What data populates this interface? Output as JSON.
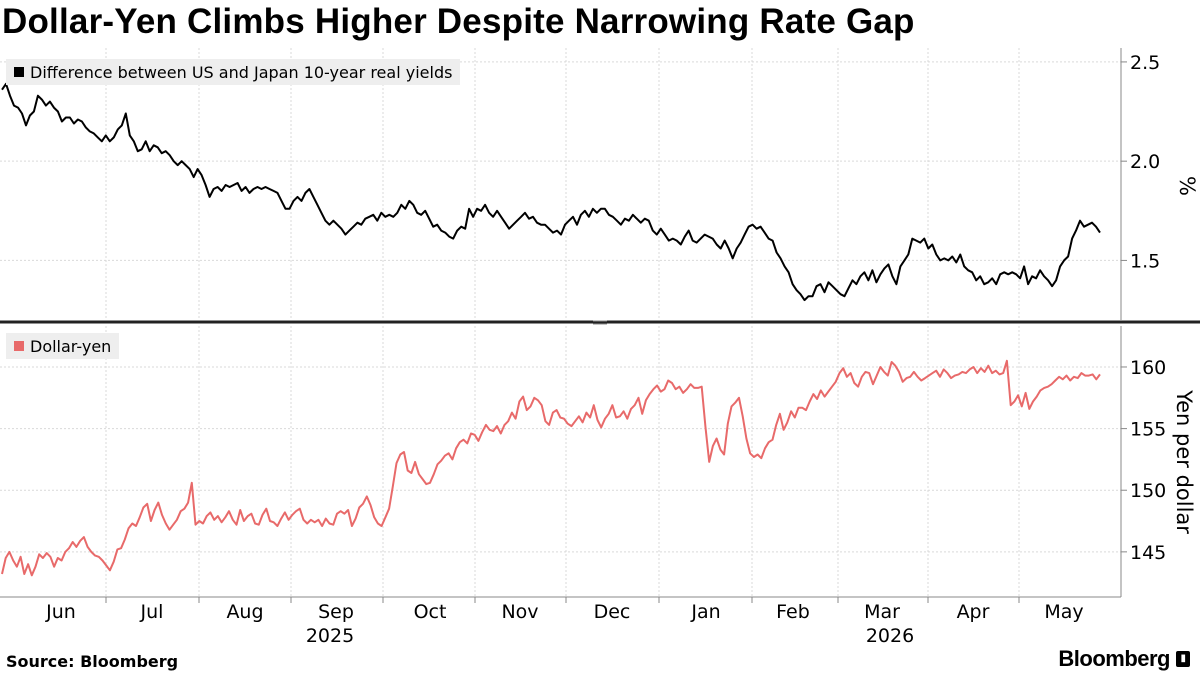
{
  "title": "Dollar-Yen Climbs Higher Despite Narrowing Rate Gap",
  "source": "Source: Bloomberg",
  "brand": "Bloomberg",
  "chart_data": [
    {
      "type": "line",
      "legend": "Difference between US and Japan 10-year real yields",
      "ylabel": "%",
      "yticks": [
        "2.5",
        "2.0",
        "1.5"
      ],
      "ylim": [
        1.22,
        2.55
      ],
      "color": "#000000",
      "grid": true,
      "series": [
        {
          "name": "Difference between US and Japan 10-year real yields",
          "values": [
            2.36,
            2.39,
            2.33,
            2.28,
            2.27,
            2.24,
            2.18,
            2.23,
            2.25,
            2.33,
            2.31,
            2.28,
            2.3,
            2.27,
            2.25,
            2.2,
            2.22,
            2.22,
            2.19,
            2.21,
            2.2,
            2.17,
            2.15,
            2.14,
            2.12,
            2.1,
            2.13,
            2.1,
            2.12,
            2.16,
            2.18,
            2.24,
            2.13,
            2.1,
            2.05,
            2.06,
            2.1,
            2.05,
            2.08,
            2.07,
            2.04,
            2.05,
            2.03,
            2.0,
            1.98,
            2.0,
            1.98,
            1.96,
            1.92,
            1.96,
            1.93,
            1.88,
            1.82,
            1.86,
            1.87,
            1.85,
            1.88,
            1.87,
            1.88,
            1.89,
            1.85,
            1.87,
            1.84,
            1.86,
            1.87,
            1.86,
            1.87,
            1.86,
            1.85,
            1.84,
            1.8,
            1.76,
            1.76,
            1.8,
            1.82,
            1.8,
            1.84,
            1.86,
            1.82,
            1.78,
            1.74,
            1.7,
            1.68,
            1.7,
            1.68,
            1.66,
            1.63,
            1.65,
            1.67,
            1.69,
            1.68,
            1.71,
            1.72,
            1.73,
            1.7,
            1.74,
            1.72,
            1.73,
            1.72,
            1.74,
            1.78,
            1.76,
            1.8,
            1.78,
            1.74,
            1.73,
            1.75,
            1.71,
            1.67,
            1.68,
            1.65,
            1.64,
            1.62,
            1.61,
            1.65,
            1.67,
            1.66,
            1.76,
            1.72,
            1.76,
            1.75,
            1.78,
            1.74,
            1.72,
            1.75,
            1.72,
            1.69,
            1.66,
            1.68,
            1.7,
            1.72,
            1.74,
            1.71,
            1.72,
            1.69,
            1.68,
            1.68,
            1.66,
            1.64,
            1.65,
            1.63,
            1.68,
            1.7,
            1.72,
            1.68,
            1.73,
            1.75,
            1.72,
            1.76,
            1.74,
            1.76,
            1.76,
            1.73,
            1.72,
            1.7,
            1.68,
            1.71,
            1.7,
            1.73,
            1.71,
            1.69,
            1.71,
            1.7,
            1.65,
            1.63,
            1.66,
            1.63,
            1.6,
            1.61,
            1.6,
            1.58,
            1.62,
            1.65,
            1.6,
            1.59,
            1.61,
            1.63,
            1.62,
            1.61,
            1.58,
            1.56,
            1.6,
            1.56,
            1.51,
            1.56,
            1.59,
            1.63,
            1.67,
            1.68,
            1.66,
            1.67,
            1.64,
            1.61,
            1.6,
            1.54,
            1.51,
            1.47,
            1.44,
            1.38,
            1.35,
            1.33,
            1.3,
            1.32,
            1.32,
            1.37,
            1.38,
            1.34,
            1.39,
            1.37,
            1.35,
            1.33,
            1.32,
            1.36,
            1.4,
            1.38,
            1.42,
            1.44,
            1.4,
            1.45,
            1.39,
            1.43,
            1.46,
            1.48,
            1.42,
            1.38,
            1.47,
            1.5,
            1.53,
            1.61,
            1.6,
            1.59,
            1.61,
            1.56,
            1.58,
            1.53,
            1.5,
            1.51,
            1.5,
            1.52,
            1.49,
            1.53,
            1.47,
            1.45,
            1.44,
            1.4,
            1.42,
            1.38,
            1.39,
            1.41,
            1.38,
            1.43,
            1.44,
            1.43,
            1.44,
            1.43,
            1.41,
            1.47,
            1.38,
            1.42,
            1.41,
            1.45,
            1.42,
            1.4,
            1.37,
            1.4,
            1.47,
            1.5,
            1.52,
            1.61,
            1.65,
            1.7,
            1.67,
            1.68,
            1.69,
            1.67,
            1.64
          ]
        }
      ]
    },
    {
      "type": "line",
      "legend": "Dollar-yen",
      "ylabel": "Yen per dollar",
      "yticks": [
        "160",
        "155",
        "150",
        "145"
      ],
      "ylim": [
        141.5,
        163
      ],
      "color": "#e86a6a",
      "grid": true,
      "series": [
        {
          "name": "Dollar-yen",
          "values": [
            143.2,
            144.5,
            145.0,
            144.3,
            143.8,
            144.6,
            143.2,
            144.0,
            143.1,
            143.8,
            144.8,
            144.5,
            144.9,
            144.6,
            143.8,
            144.5,
            144.3,
            145.0,
            145.3,
            145.8,
            145.4,
            145.9,
            146.2,
            145.4,
            145.0,
            144.7,
            144.6,
            144.3,
            143.9,
            143.5,
            144.2,
            145.2,
            145.3,
            146.0,
            146.9,
            147.3,
            147.1,
            147.8,
            148.6,
            148.9,
            147.5,
            148.4,
            149.0,
            148.0,
            147.3,
            146.8,
            147.2,
            147.6,
            148.3,
            148.5,
            149.0,
            150.6,
            147.2,
            147.5,
            147.3,
            147.9,
            148.2,
            147.6,
            147.9,
            147.4,
            147.8,
            148.3,
            147.6,
            147.2,
            148.4,
            147.5,
            147.9,
            148.1,
            147.3,
            147.2,
            148.0,
            148.5,
            147.5,
            147.4,
            147.1,
            147.7,
            148.2,
            147.6,
            148.0,
            148.3,
            148.5,
            147.6,
            147.3,
            147.6,
            147.4,
            147.6,
            147.1,
            147.7,
            147.3,
            147.2,
            148.1,
            148.3,
            148.1,
            148.4,
            147.1,
            147.7,
            148.6,
            148.9,
            149.5,
            148.8,
            147.8,
            147.3,
            147.1,
            147.8,
            148.5,
            150.3,
            152.2,
            152.9,
            153.1,
            151.6,
            151.4,
            152.3,
            151.3,
            150.9,
            150.5,
            150.6,
            151.3,
            152.1,
            152.4,
            152.8,
            153.0,
            152.5,
            153.4,
            153.9,
            154.1,
            153.8,
            154.6,
            154.5,
            154.0,
            154.7,
            155.3,
            154.9,
            154.8,
            155.2,
            154.6,
            155.3,
            155.6,
            156.3,
            155.8,
            157.2,
            157.6,
            156.5,
            156.8,
            157.5,
            157.3,
            156.9,
            155.6,
            155.3,
            156.3,
            156.5,
            155.9,
            155.8,
            155.4,
            155.2,
            155.6,
            156.0,
            155.5,
            156.3,
            155.9,
            156.9,
            155.7,
            155.1,
            155.8,
            156.2,
            156.9,
            155.9,
            156.0,
            156.4,
            155.8,
            156.6,
            156.9,
            157.5,
            156.2,
            157.3,
            157.8,
            158.2,
            158.5,
            158.0,
            158.2,
            158.9,
            158.7,
            158.2,
            158.4,
            157.9,
            158.2,
            158.6,
            158.3,
            158.3,
            158.4,
            155.1,
            152.3,
            153.6,
            154.2,
            153.3,
            152.9,
            155.4,
            156.8,
            157.1,
            157.5,
            156.0,
            154.2,
            153.0,
            152.7,
            152.9,
            152.6,
            153.4,
            153.9,
            154.1,
            155.3,
            156.2,
            154.9,
            155.5,
            156.4,
            155.9,
            156.7,
            156.7,
            156.5,
            157.2,
            157.8,
            157.4,
            158.1,
            157.6,
            158.0,
            158.4,
            158.8,
            159.5,
            159.9,
            159.2,
            159.5,
            158.7,
            158.4,
            159.2,
            159.6,
            159.5,
            158.6,
            159.3,
            160.0,
            159.6,
            159.3,
            160.4,
            160.1,
            159.6,
            158.8,
            159.1,
            159.2,
            159.6,
            159.2,
            158.9,
            159.1,
            159.3,
            159.5,
            159.7,
            159.2,
            159.8,
            159.5,
            159.1,
            159.3,
            159.4,
            159.6,
            159.5,
            159.8,
            160.0,
            159.5,
            159.9,
            159.6,
            160.1,
            159.5,
            159.7,
            159.4,
            159.5,
            160.5,
            156.9,
            157.2,
            157.7,
            156.8,
            157.9,
            156.6,
            157.2,
            157.6,
            158.1,
            158.3,
            158.4,
            158.6,
            158.9,
            159.2,
            159.0,
            159.3,
            158.9,
            159.2,
            159.1,
            159.5,
            159.3,
            159.3,
            159.4,
            159.0,
            159.4
          ]
        }
      ]
    }
  ],
  "x_axis": {
    "months": [
      "Jun",
      "Jul",
      "Aug",
      "Sep",
      "Oct",
      "Nov",
      "Dec",
      "Jan",
      "Feb",
      "Mar",
      "Apr",
      "May"
    ],
    "years": [
      "2025",
      "2026"
    ]
  }
}
